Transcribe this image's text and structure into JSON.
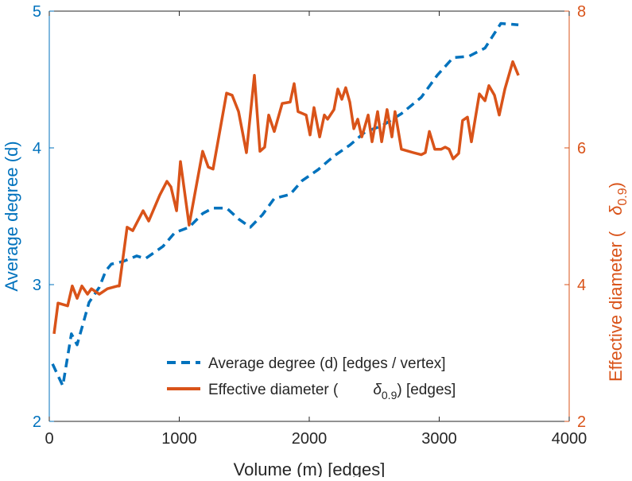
{
  "chart_data": {
    "type": "line",
    "title": "",
    "xlabel": "Volume (m) [edges]",
    "ylabel": "Average degree (d)",
    "ylabel_right": {
      "text": "Effective diameter (",
      "symbol": "δ",
      "subscript": "0.9",
      "close": ")"
    },
    "xlim": [
      0,
      4000
    ],
    "ylim": [
      2,
      5
    ],
    "ylim_right": [
      2,
      8
    ],
    "xticks": [
      0,
      1000,
      2000,
      3000,
      4000
    ],
    "yticks": [
      2,
      3,
      4,
      5
    ],
    "yticks_right": [
      2,
      4,
      6,
      8
    ],
    "grid": false,
    "legend_position": "bottom-right",
    "colors": {
      "left": "#0072BD",
      "right": "#D95319"
    },
    "series": [
      {
        "name": "Average degree (d) [edges / vertex]",
        "axis": "left",
        "style": "dashed",
        "x": [
          25,
          104,
          170,
          214,
          306,
          385,
          434,
          477,
          569,
          673,
          740,
          875,
          966,
          1076,
          1180,
          1260,
          1364,
          1456,
          1547,
          1639,
          1731,
          1853,
          1945,
          2067,
          2190,
          2312,
          2434,
          2557,
          2709,
          2862,
          2984,
          3107,
          3229,
          3352,
          3474,
          3609
        ],
        "y": [
          2.42,
          2.26,
          2.64,
          2.56,
          2.87,
          2.98,
          3.1,
          3.15,
          3.17,
          3.21,
          3.19,
          3.28,
          3.38,
          3.42,
          3.52,
          3.56,
          3.56,
          3.48,
          3.42,
          3.51,
          3.63,
          3.66,
          3.76,
          3.84,
          3.94,
          4.02,
          4.12,
          4.16,
          4.25,
          4.37,
          4.53,
          4.66,
          4.67,
          4.73,
          4.91,
          4.9
        ]
      },
      {
        "name": "Effective diameter (δ0.9) [edges]",
        "legend": {
          "text": "Effective diameter (",
          "symbol": "δ",
          "subscript": "0.9",
          "close": ") [edges]"
        },
        "axis": "right",
        "style": "solid",
        "x": [
          37,
          67,
          141,
          177,
          214,
          251,
          294,
          324,
          385,
          447,
          526,
          538,
          599,
          642,
          722,
          765,
          850,
          905,
          936,
          979,
          1009,
          1076,
          1180,
          1223,
          1260,
          1364,
          1407,
          1456,
          1517,
          1578,
          1621,
          1657,
          1688,
          1731,
          1792,
          1853,
          1884,
          1914,
          1976,
          2006,
          2037,
          2080,
          2116,
          2141,
          2190,
          2220,
          2251,
          2281,
          2312,
          2343,
          2373,
          2404,
          2453,
          2483,
          2526,
          2557,
          2599,
          2636,
          2660,
          2709,
          2801,
          2862,
          2893,
          2924,
          2966,
          3015,
          3046,
          3076,
          3107,
          3150,
          3180,
          3217,
          3248,
          3309,
          3352,
          3382,
          3425,
          3462,
          3505,
          3566,
          3609
        ],
        "y": [
          3.28,
          3.73,
          3.69,
          3.98,
          3.8,
          3.98,
          3.86,
          3.94,
          3.86,
          3.94,
          3.98,
          3.98,
          4.84,
          4.79,
          5.08,
          4.93,
          5.31,
          5.51,
          5.43,
          5.08,
          5.8,
          4.87,
          5.95,
          5.72,
          5.69,
          6.8,
          6.77,
          6.53,
          5.93,
          7.06,
          5.95,
          6.01,
          6.48,
          6.24,
          6.65,
          6.67,
          6.94,
          6.53,
          6.48,
          6.19,
          6.59,
          6.16,
          6.48,
          6.42,
          6.56,
          6.86,
          6.71,
          6.88,
          6.67,
          6.28,
          6.42,
          6.16,
          6.48,
          6.09,
          6.53,
          6.09,
          6.56,
          6.16,
          6.53,
          5.98,
          5.93,
          5.9,
          5.93,
          6.24,
          5.98,
          5.98,
          6.01,
          5.98,
          5.84,
          5.92,
          6.4,
          6.45,
          6.09,
          6.79,
          6.69,
          6.91,
          6.77,
          6.48,
          6.86,
          7.26,
          7.06
        ]
      }
    ]
  }
}
